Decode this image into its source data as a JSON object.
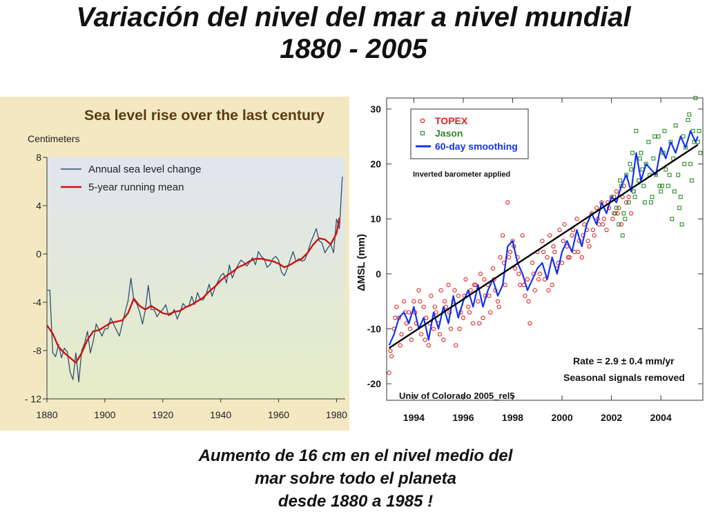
{
  "slide": {
    "title_line1": "Variación del nivel del mar a nivel mundial",
    "title_line2": "1880 - 2005",
    "caption_line1": "Aumento de 16 cm en el nivel medio del",
    "caption_line2": "mar sobre todo el planeta",
    "caption_line3": "desde 1880 a 1985 !"
  },
  "colors": {
    "annual_line": "#2f4f6f",
    "running_mean": "#cc1111",
    "topex": "#dd2222",
    "jason": "#2a8a2a",
    "smoothing": "#1133ee",
    "trend": "#000000",
    "left_bg_top": "#dfe6ee",
    "left_bg_bottom": "#e6ecc6",
    "left_frame": "#f3e8c2"
  },
  "chart_data": [
    {
      "type": "line",
      "title": "Sea level rise over the last century",
      "ylabel": "Centimeters",
      "xlabel": "",
      "xlim": [
        1880,
        1983
      ],
      "ylim": [
        -12,
        8
      ],
      "x_ticks": [
        1880,
        1900,
        1920,
        1940,
        1960,
        1980
      ],
      "x_tick_labels": [
        "1880",
        "1900",
        "1920",
        "1940",
        "1960",
        "1980"
      ],
      "y_ticks": [
        8,
        4,
        0,
        -4,
        -8,
        -12
      ],
      "y_tick_labels": [
        "8",
        "4",
        "0",
        "-4",
        "-8",
        "- 12"
      ],
      "legend": [
        "Annual sea level change",
        "5-year running mean"
      ],
      "legend_position": "top-left",
      "series": [
        {
          "name": "Annual sea level change",
          "x": [
            1880,
            1881,
            1882,
            1883,
            1884,
            1885,
            1886,
            1887,
            1888,
            1889,
            1890,
            1891,
            1892,
            1893,
            1894,
            1895,
            1896,
            1897,
            1898,
            1899,
            1900,
            1901,
            1902,
            1903,
            1904,
            1905,
            1906,
            1907,
            1908,
            1909,
            1910,
            1911,
            1912,
            1913,
            1914,
            1915,
            1916,
            1917,
            1918,
            1919,
            1920,
            1921,
            1922,
            1923,
            1924,
            1925,
            1926,
            1927,
            1928,
            1929,
            1930,
            1931,
            1932,
            1933,
            1934,
            1935,
            1936,
            1937,
            1938,
            1939,
            1940,
            1941,
            1942,
            1943,
            1944,
            1945,
            1946,
            1947,
            1948,
            1949,
            1950,
            1951,
            1952,
            1953,
            1954,
            1955,
            1956,
            1957,
            1958,
            1959,
            1960,
            1961,
            1962,
            1963,
            1964,
            1965,
            1966,
            1967,
            1968,
            1969,
            1970,
            1971,
            1972,
            1973,
            1974,
            1975,
            1976,
            1977,
            1978,
            1979,
            1980,
            1981,
            1982
          ],
          "values": [
            -3,
            -3,
            -8.2,
            -8.5,
            -7.5,
            -8.6,
            -7.8,
            -8.1,
            -9.8,
            -10.4,
            -8.2,
            -10.6,
            -8,
            -7.4,
            -6.4,
            -8.2,
            -7.2,
            -5.8,
            -6.3,
            -6.8,
            -6.2,
            -6.2,
            -5.3,
            -5.8,
            -6.3,
            -6.8,
            -5.8,
            -4.8,
            -3.9,
            -2,
            -3.8,
            -4.1,
            -4.8,
            -5.8,
            -4.6,
            -2.6,
            -4.6,
            -4.6,
            -5.2,
            -4.8,
            -4.6,
            -4.2,
            -5.1,
            -5,
            -4.6,
            -5.4,
            -4.8,
            -4.1,
            -4.4,
            -4.3,
            -3.5,
            -4.2,
            -3.2,
            -3.8,
            -3.8,
            -3.3,
            -2.5,
            -3.5,
            -2.8,
            -2.3,
            -1.8,
            -1.6,
            -2.4,
            -0.9,
            -2,
            -1.4,
            -0.9,
            -0.5,
            -0.7,
            -1,
            -0.7,
            -0.3,
            -0.9,
            0.2,
            -0.2,
            -0.4,
            -1.1,
            -0.9,
            -0.4,
            -0.2,
            -0.5,
            -1.5,
            -1.8,
            -1.2,
            -0.5,
            0.2,
            -0.6,
            -0.4,
            -0.6,
            -0.5,
            0.1,
            0.9,
            1.5,
            2.1,
            1.1,
            0.9,
            0.1,
            0.5,
            0.8,
            0.1,
            2.9,
            2.1,
            6.4
          ]
        },
        {
          "name": "5-year running mean",
          "x": [
            1880,
            1882,
            1884,
            1886,
            1888,
            1890,
            1892,
            1894,
            1896,
            1898,
            1900,
            1902,
            1904,
            1906,
            1908,
            1910,
            1912,
            1914,
            1916,
            1918,
            1920,
            1922,
            1924,
            1926,
            1928,
            1930,
            1932,
            1934,
            1936,
            1938,
            1940,
            1942,
            1944,
            1946,
            1948,
            1950,
            1952,
            1954,
            1956,
            1958,
            1960,
            1962,
            1964,
            1966,
            1968,
            1970,
            1972,
            1974,
            1976,
            1978,
            1980,
            1981
          ],
          "values": [
            -5.9,
            -6.6,
            -7.7,
            -8.2,
            -8.6,
            -9,
            -8.2,
            -7.1,
            -6.4,
            -6.3,
            -6,
            -5.7,
            -5.6,
            -5.5,
            -4.9,
            -3.7,
            -4.3,
            -4.6,
            -4.3,
            -4.6,
            -4.9,
            -5,
            -4.8,
            -4.7,
            -4.4,
            -4.2,
            -3.9,
            -3.6,
            -3.1,
            -2.7,
            -2.2,
            -1.8,
            -1.5,
            -1.1,
            -0.9,
            -0.6,
            -0.4,
            -0.4,
            -0.5,
            -0.6,
            -0.8,
            -1.1,
            -0.9,
            -0.6,
            -0.4,
            0.1,
            0.8,
            1.3,
            1.2,
            0.8,
            1.7,
            3
          ]
        }
      ]
    },
    {
      "type": "scatter",
      "title": "",
      "xlabel": "",
      "ylabel": "ΔMSL   (mm)",
      "xlim": [
        1992.9,
        2005.7
      ],
      "ylim": [
        -23,
        32
      ],
      "x_ticks": [
        1994,
        1996,
        1998,
        2000,
        2002,
        2004
      ],
      "x_tick_labels": [
        "1994",
        "1996",
        "1998",
        "2000",
        "2002",
        "2004"
      ],
      "y_ticks": [
        30,
        20,
        10,
        0,
        -10,
        -20
      ],
      "y_tick_labels": [
        "30",
        "20",
        "10",
        "0",
        "-10",
        "-20"
      ],
      "legend": [
        "TOPEX",
        "Jason",
        "60-day smoothing"
      ],
      "legend_position": "top-left",
      "annotations": {
        "inverted_barometer": "Inverted barometer applied",
        "rate": "Rate = 2.9 ± 0.4 mm/yr",
        "seasonal": "Seasonal signals removed",
        "source": "Univ of Colorado 2005_rel5"
      },
      "trend": {
        "name": "Linear trend",
        "x": [
          1993.0,
          2005.5
        ],
        "values": [
          -13.5,
          23.5
        ]
      },
      "series": [
        {
          "name": "60-day smoothing",
          "x": [
            1993.0,
            1993.2,
            1993.4,
            1993.6,
            1993.8,
            1994.0,
            1994.2,
            1994.4,
            1994.6,
            1994.8,
            1995.0,
            1995.2,
            1995.4,
            1995.6,
            1995.8,
            1996.0,
            1996.2,
            1996.4,
            1996.6,
            1996.8,
            1997.0,
            1997.2,
            1997.4,
            1997.6,
            1997.8,
            1998.0,
            1998.2,
            1998.4,
            1998.6,
            1998.8,
            1999.0,
            1999.2,
            1999.4,
            1999.6,
            1999.8,
            2000.0,
            2000.2,
            2000.4,
            2000.6,
            2000.8,
            2001.0,
            2001.2,
            2001.4,
            2001.6,
            2001.8,
            2002.0,
            2002.2,
            2002.4,
            2002.6,
            2002.8,
            2003.0,
            2003.2,
            2003.4,
            2003.6,
            2003.8,
            2004.0,
            2004.2,
            2004.4,
            2004.6,
            2004.8,
            2005.0,
            2005.2,
            2005.4,
            2005.5
          ],
          "values": [
            -13,
            -11,
            -8,
            -7,
            -9,
            -6,
            -10,
            -8,
            -12,
            -7,
            -10,
            -6,
            -9,
            -4,
            -8,
            -5,
            -3,
            -6,
            -2,
            -6,
            -3,
            -1,
            -4,
            -2,
            5,
            6,
            2,
            0,
            -3,
            -1,
            1,
            2,
            -1,
            3,
            0,
            4,
            6,
            4,
            8,
            5,
            9,
            11,
            9,
            13,
            11,
            14,
            13,
            16,
            18,
            15,
            22,
            17,
            20,
            19,
            18,
            23,
            21,
            24,
            22,
            25,
            23,
            26,
            24,
            25
          ]
        },
        {
          "name": "TOPEX",
          "x": [
            1993.0,
            1993.1,
            1993.2,
            1993.3,
            1993.4,
            1993.5,
            1993.6,
            1993.7,
            1993.8,
            1993.9,
            1994.0,
            1994.1,
            1994.2,
            1994.3,
            1994.4,
            1994.5,
            1994.6,
            1994.7,
            1994.8,
            1994.9,
            1995.0,
            1995.1,
            1995.2,
            1995.3,
            1995.4,
            1995.5,
            1995.6,
            1995.7,
            1995.8,
            1995.9,
            1996.0,
            1996.1,
            1996.2,
            1996.3,
            1996.4,
            1996.5,
            1996.6,
            1996.7,
            1996.8,
            1996.9,
            1997.0,
            1997.1,
            1997.2,
            1997.3,
            1997.4,
            1997.5,
            1997.6,
            1997.7,
            1997.8,
            1997.9,
            1998.0,
            1998.1,
            1998.2,
            1998.3,
            1998.4,
            1998.5,
            1998.6,
            1998.7,
            1998.8,
            1998.9,
            1999.0,
            1999.1,
            1999.2,
            1999.3,
            1999.4,
            1999.5,
            1999.6,
            1999.7,
            1999.8,
            1999.9,
            2000.0,
            2000.1,
            2000.2,
            2000.3,
            2000.4,
            2000.5,
            2000.6,
            2000.7,
            2000.8,
            2000.9,
            2001.0,
            2001.1,
            2001.2,
            2001.3,
            2001.4,
            2001.5,
            2001.6,
            2001.7,
            2001.8,
            2001.9,
            2002.0,
            2002.1,
            2002.2,
            2002.3,
            2002.4,
            2002.5,
            2002.6,
            2002.7,
            2002.8,
            2002.9,
            1993.05,
            1993.25,
            1993.45,
            1993.65,
            1993.85,
            1994.05,
            1994.25,
            1994.45,
            1994.65,
            1994.85,
            1995.05,
            1995.25,
            1995.45,
            1995.65,
            1995.85,
            1996.05,
            1996.25,
            1996.45,
            1996.65,
            1996.85,
            1997.05,
            1997.25,
            1997.45,
            1997.65,
            1997.85,
            1998.05,
            1998.25,
            1998.45,
            1998.65,
            1998.85,
            1999.05,
            1999.25,
            1999.45,
            1999.65,
            1999.85,
            2000.05,
            2000.25,
            2000.45,
            2000.65,
            2000.85,
            2001.05,
            2001.25,
            2001.45,
            2001.65,
            2001.85,
            2002.05,
            2002.25,
            2002.45
          ],
          "values": [
            -18,
            -15,
            -10,
            -6,
            -8,
            -11,
            -5,
            -9,
            -7,
            -12,
            -5,
            -9,
            -3,
            -11,
            -6,
            -8,
            -13,
            -4,
            -10,
            -7,
            -9,
            -3,
            -12,
            -6,
            -2,
            -10,
            -5,
            -13,
            -4,
            -7,
            -8,
            -1,
            -6,
            -3,
            -9,
            -2,
            -5,
            0,
            -8,
            -4,
            -2,
            -7,
            1,
            -3,
            -5,
            3,
            7,
            -2,
            13,
            4,
            6,
            1,
            3,
            -2,
            7,
            -4,
            -1,
            -9,
            2,
            -3,
            4,
            0,
            6,
            -1,
            3,
            7,
            -2,
            4,
            1,
            8,
            2,
            9,
            5,
            3,
            7,
            4,
            10,
            6,
            3,
            9,
            8,
            5,
            11,
            7,
            12,
            9,
            13,
            10,
            8,
            12,
            14,
            11,
            15,
            12,
            9,
            16,
            13,
            14,
            11,
            15,
            -14,
            -8,
            -13,
            -7,
            -10,
            -7,
            -5,
            -12,
            -9,
            -6,
            -11,
            -5,
            -7,
            -3,
            -10,
            -4,
            -7,
            -2,
            -9,
            -1,
            -4,
            -1,
            -6,
            2,
            3,
            5,
            0,
            -2,
            -5,
            0,
            -1,
            4,
            -3,
            5,
            2,
            6,
            3,
            8,
            4,
            7,
            6,
            8,
            10,
            9,
            13,
            10,
            11,
            14
          ]
        },
        {
          "name": "Jason",
          "x": [
            2002.1,
            2002.2,
            2002.3,
            2002.4,
            2002.5,
            2002.6,
            2002.7,
            2002.8,
            2002.9,
            2003.0,
            2003.1,
            2003.2,
            2003.3,
            2003.4,
            2003.5,
            2003.6,
            2003.7,
            2003.8,
            2003.9,
            2004.0,
            2004.1,
            2004.2,
            2004.3,
            2004.4,
            2004.5,
            2004.6,
            2004.7,
            2004.8,
            2004.9,
            2005.0,
            2005.1,
            2005.2,
            2005.3,
            2005.4,
            2005.5,
            2005.6,
            2002.15,
            2002.35,
            2002.55,
            2002.75,
            2002.95,
            2003.15,
            2003.35,
            2003.55,
            2003.75,
            2003.95,
            2004.15,
            2004.35,
            2004.55,
            2004.75,
            2004.95,
            2005.15,
            2005.35,
            2005.55,
            2002.45,
            2002.85,
            2003.25,
            2003.65,
            2004.05,
            2004.45,
            2004.85,
            2005.25
          ],
          "values": [
            14,
            12,
            9,
            16,
            11,
            18,
            13,
            19,
            15,
            26,
            17,
            22,
            16,
            20,
            24,
            13,
            21,
            18,
            25,
            15,
            22,
            19,
            16,
            24,
            21,
            27,
            18,
            14,
            25,
            23,
            28,
            20,
            26,
            32,
            24,
            22,
            11,
            17,
            10,
            20,
            14,
            21,
            13,
            18,
            25,
            16,
            26,
            18,
            15,
            12,
            20,
            29,
            24,
            26,
            7,
            22,
            19,
            14,
            16,
            10,
            9,
            17
          ]
        }
      ]
    }
  ]
}
